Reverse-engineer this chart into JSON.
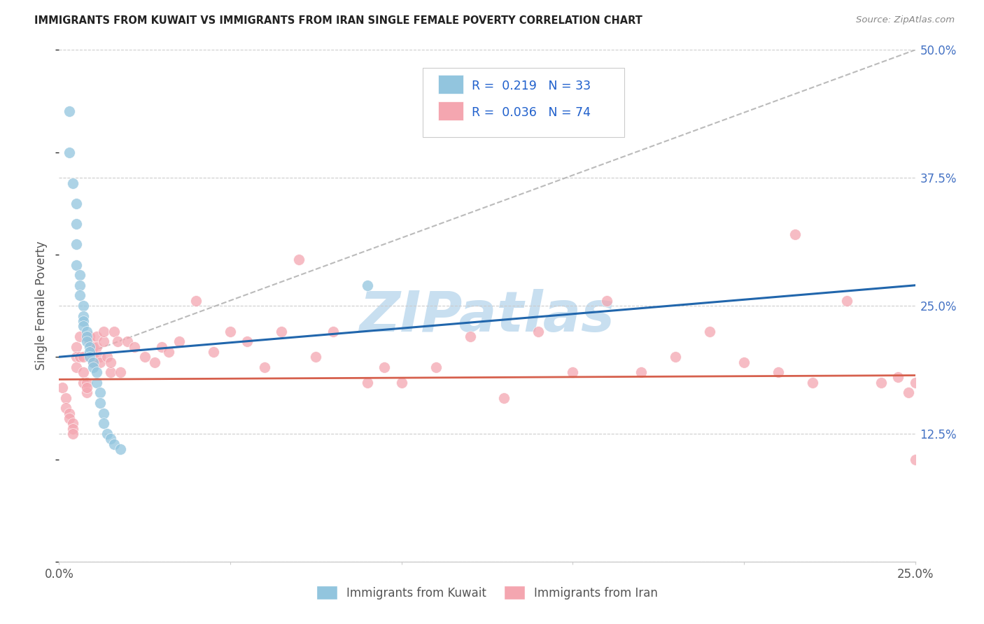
{
  "title": "IMMIGRANTS FROM KUWAIT VS IMMIGRANTS FROM IRAN SINGLE FEMALE POVERTY CORRELATION CHART",
  "source": "Source: ZipAtlas.com",
  "ylabel": "Single Female Poverty",
  "ylabel_right_ticks": [
    0.0,
    0.125,
    0.25,
    0.375,
    0.5
  ],
  "ylabel_right_labels": [
    "",
    "12.5%",
    "25.0%",
    "37.5%",
    "50.0%"
  ],
  "xlim": [
    0.0,
    0.25
  ],
  "ylim": [
    0.0,
    0.5
  ],
  "kuwait_R": "0.219",
  "kuwait_N": "33",
  "iran_R": "0.036",
  "iran_N": "74",
  "kuwait_color": "#92c5de",
  "iran_color": "#f4a6b0",
  "kuwait_line_color": "#2166ac",
  "iran_line_color": "#d6604d",
  "dashed_line_color": "#bbbbbb",
  "legend_label_kuwait": "Immigrants from Kuwait",
  "legend_label_iran": "Immigrants from Iran",
  "watermark_text": "ZIPatlas",
  "watermark_color": "#c8dff0",
  "legend_R_N_color": "#2060cc",
  "legend_R_color": "#333333",
  "kuwait_x": [
    0.003,
    0.003,
    0.004,
    0.005,
    0.005,
    0.005,
    0.005,
    0.006,
    0.006,
    0.006,
    0.007,
    0.007,
    0.007,
    0.007,
    0.008,
    0.008,
    0.008,
    0.009,
    0.009,
    0.009,
    0.01,
    0.01,
    0.011,
    0.011,
    0.012,
    0.012,
    0.013,
    0.013,
    0.014,
    0.015,
    0.016,
    0.018,
    0.09
  ],
  "kuwait_y": [
    0.44,
    0.4,
    0.37,
    0.35,
    0.33,
    0.31,
    0.29,
    0.28,
    0.27,
    0.26,
    0.25,
    0.24,
    0.235,
    0.23,
    0.225,
    0.22,
    0.215,
    0.21,
    0.205,
    0.2,
    0.195,
    0.19,
    0.185,
    0.175,
    0.165,
    0.155,
    0.145,
    0.135,
    0.125,
    0.12,
    0.115,
    0.11,
    0.27
  ],
  "iran_x": [
    0.001,
    0.002,
    0.002,
    0.003,
    0.003,
    0.004,
    0.004,
    0.004,
    0.005,
    0.005,
    0.005,
    0.006,
    0.006,
    0.007,
    0.007,
    0.007,
    0.008,
    0.008,
    0.008,
    0.009,
    0.009,
    0.01,
    0.01,
    0.01,
    0.011,
    0.011,
    0.012,
    0.012,
    0.013,
    0.013,
    0.014,
    0.015,
    0.015,
    0.016,
    0.017,
    0.018,
    0.02,
    0.022,
    0.025,
    0.028,
    0.03,
    0.032,
    0.035,
    0.04,
    0.045,
    0.05,
    0.055,
    0.06,
    0.065,
    0.07,
    0.075,
    0.08,
    0.09,
    0.095,
    0.1,
    0.11,
    0.12,
    0.13,
    0.14,
    0.15,
    0.16,
    0.17,
    0.18,
    0.19,
    0.2,
    0.21,
    0.215,
    0.22,
    0.23,
    0.24,
    0.245,
    0.248,
    0.25,
    0.25
  ],
  "iran_y": [
    0.17,
    0.16,
    0.15,
    0.145,
    0.14,
    0.135,
    0.13,
    0.125,
    0.21,
    0.2,
    0.19,
    0.22,
    0.2,
    0.2,
    0.185,
    0.175,
    0.175,
    0.165,
    0.17,
    0.22,
    0.215,
    0.21,
    0.2,
    0.195,
    0.22,
    0.21,
    0.2,
    0.195,
    0.215,
    0.225,
    0.2,
    0.185,
    0.195,
    0.225,
    0.215,
    0.185,
    0.215,
    0.21,
    0.2,
    0.195,
    0.21,
    0.205,
    0.215,
    0.255,
    0.205,
    0.225,
    0.215,
    0.19,
    0.225,
    0.295,
    0.2,
    0.225,
    0.175,
    0.19,
    0.175,
    0.19,
    0.22,
    0.16,
    0.225,
    0.185,
    0.255,
    0.185,
    0.2,
    0.225,
    0.195,
    0.185,
    0.32,
    0.175,
    0.255,
    0.175,
    0.18,
    0.165,
    0.1,
    0.175
  ],
  "blue_line_x0": 0.0,
  "blue_line_y0": 0.2,
  "blue_line_x1": 0.25,
  "blue_line_y1": 0.27,
  "pink_line_x0": 0.0,
  "pink_line_y0": 0.178,
  "pink_line_x1": 0.25,
  "pink_line_y1": 0.182,
  "dash_line_x0": 0.005,
  "dash_line_y0": 0.2,
  "dash_line_x1": 0.25,
  "dash_line_y1": 0.5
}
